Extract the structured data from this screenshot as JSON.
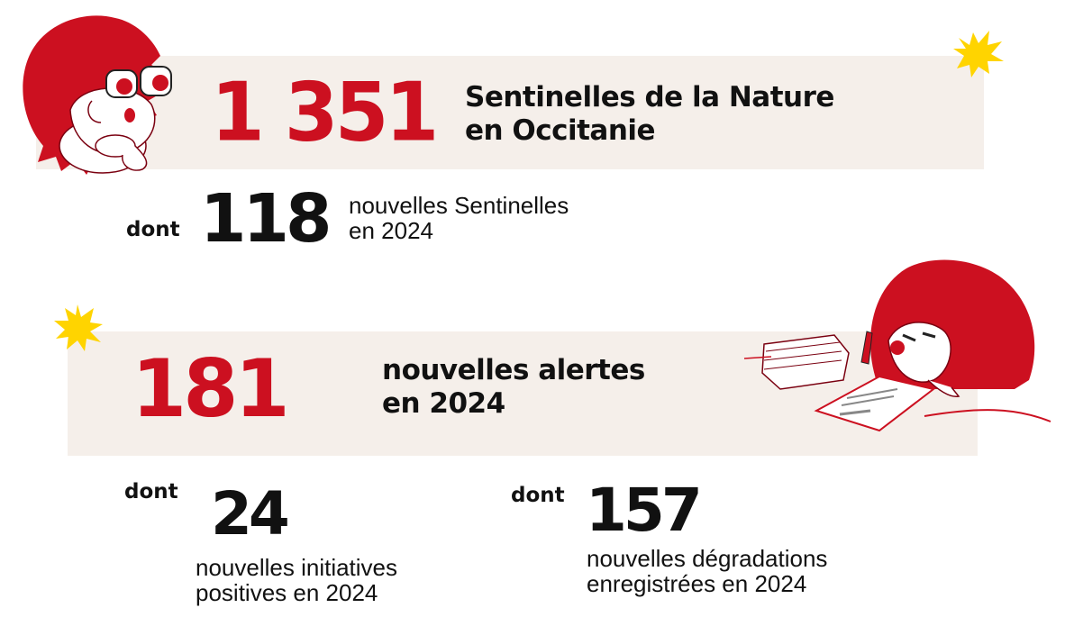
{
  "sentinelles": {
    "total": "1 351",
    "total_label_line1": "Sentinelles de la Nature",
    "total_label_line2": "en Occitanie",
    "dont": "dont",
    "new_count": "118",
    "new_label_line1": "nouvelles Sentinelles",
    "new_label_line2": "en 2024"
  },
  "alertes": {
    "total": "181",
    "total_label_line1": "nouvelles alertes",
    "total_label_line2": "en 2024",
    "initiatives": {
      "dont": "dont",
      "count": "24",
      "label_line1": "nouvelles initiatives",
      "label_line2": "positives en 2024"
    },
    "degradations": {
      "dont": "dont",
      "count": "157",
      "label_line1": "nouvelles dégradations",
      "label_line2": "enregistrées en 2024"
    }
  },
  "colors": {
    "accent_red": "#cc1020",
    "band": "#f5efea",
    "star_yellow": "#ffd400",
    "text": "#111111"
  },
  "icons": [
    "hedgehog-binoculars-illustration",
    "hedgehog-writing-illustration",
    "yellow-starburst-icon"
  ]
}
